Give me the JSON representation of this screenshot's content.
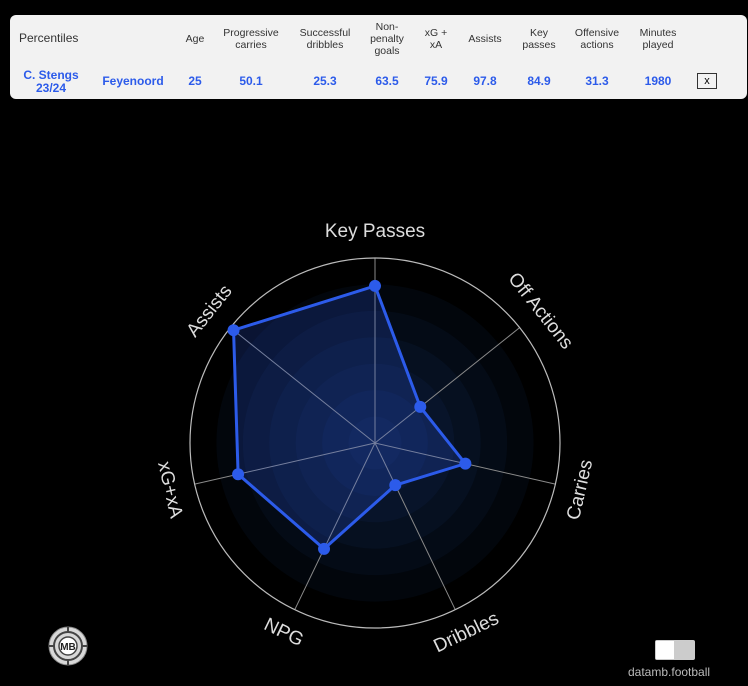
{
  "table": {
    "title": "Percentiles",
    "headers": {
      "age": "Age",
      "progressive_carries": [
        "Progressive",
        "carries"
      ],
      "successful_dribbles": [
        "Successful",
        "dribbles"
      ],
      "npg": [
        "Non-",
        "penalty",
        "goals"
      ],
      "xg_xa": [
        "xG +",
        "xA"
      ],
      "assists": "Assists",
      "key_passes": [
        "Key",
        "passes"
      ],
      "offensive_actions": [
        "Offensive",
        "actions"
      ],
      "minutes": [
        "Minutes",
        "played"
      ]
    },
    "row": {
      "player": "C. Stengs",
      "season": "23/24",
      "team": "Feyenoord",
      "age": "25",
      "progressive_carries": "50.1",
      "successful_dribbles": "25.3",
      "npg": "63.5",
      "xg_xa": "75.9",
      "assists": "97.8",
      "key_passes": "84.9",
      "offensive_actions": "31.3",
      "minutes": "1980"
    },
    "close_label": "x"
  },
  "chart_data": {
    "type": "radar",
    "range": [
      0,
      100
    ],
    "axes": [
      "Key Passes",
      "Off Actions",
      "Carries",
      "Dribbles",
      "NPG",
      "xG+xA",
      "Assists"
    ],
    "values": [
      84.9,
      31.3,
      50.1,
      25.3,
      63.5,
      75.9,
      97.8
    ],
    "colors": {
      "series_line": "#2c5bea",
      "series_fill": "#2c5bea",
      "frame": "#bbbbbb",
      "label": "#dddddd"
    }
  },
  "logo_text": "MB",
  "brand": "datamb.football"
}
